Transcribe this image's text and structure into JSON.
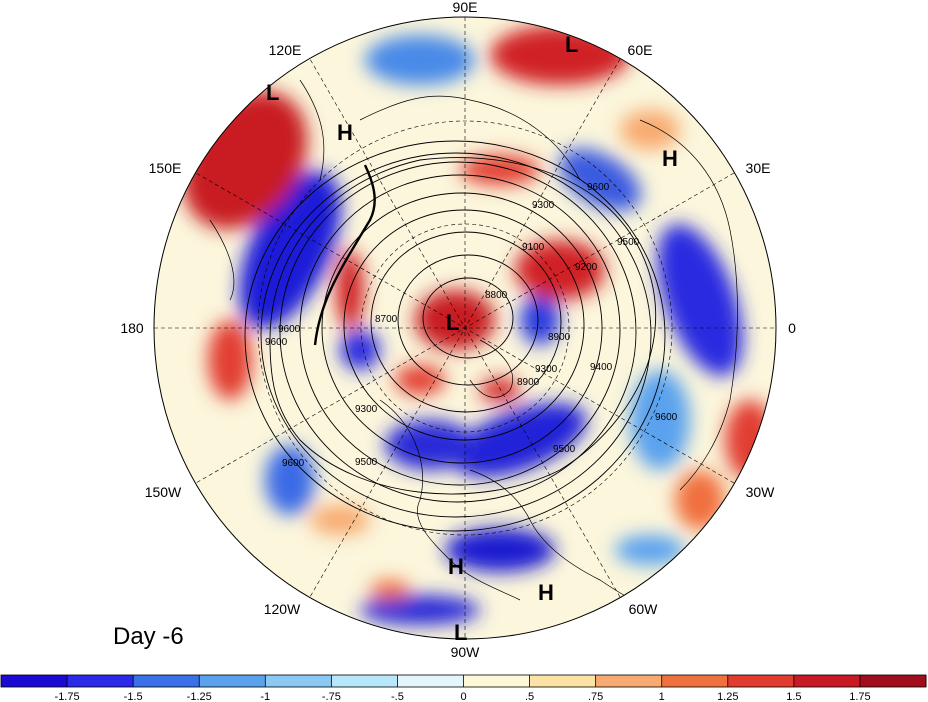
{
  "title": "Day -6",
  "longitude_labels": [
    "90E",
    "60E",
    "30E",
    "0",
    "30W",
    "60W",
    "90W",
    "120W",
    "150W",
    "180",
    "150E",
    "120E"
  ],
  "pressure_centers": [
    "L",
    "L",
    "H",
    "H",
    "L",
    "H",
    "H",
    "L"
  ],
  "contour_labels": [
    "9600",
    "9600",
    "9600",
    "9600",
    "9500",
    "9500",
    "9500",
    "9400",
    "9300",
    "9300",
    "9300",
    "9200",
    "9100",
    "8900",
    "8900",
    "8800",
    "8700",
    "9600"
  ],
  "colorbar": {
    "ticks": [
      "-1.75",
      "-1.5",
      "-1.25",
      "-1",
      "-.75",
      "-.5",
      "0",
      ".5",
      ".75",
      "1",
      "1.25",
      "1.5",
      "1.75"
    ],
    "colors": [
      "#1a0ad4",
      "#2a2ae8",
      "#3a70e8",
      "#5aa2ee",
      "#8cc8f4",
      "#b8e6fa",
      "#e2f6fc",
      "#fdf8d8",
      "#fce2a4",
      "#f8aa70",
      "#f0703e",
      "#e23c30",
      "#c81a24",
      "#a00d1c"
    ]
  }
}
